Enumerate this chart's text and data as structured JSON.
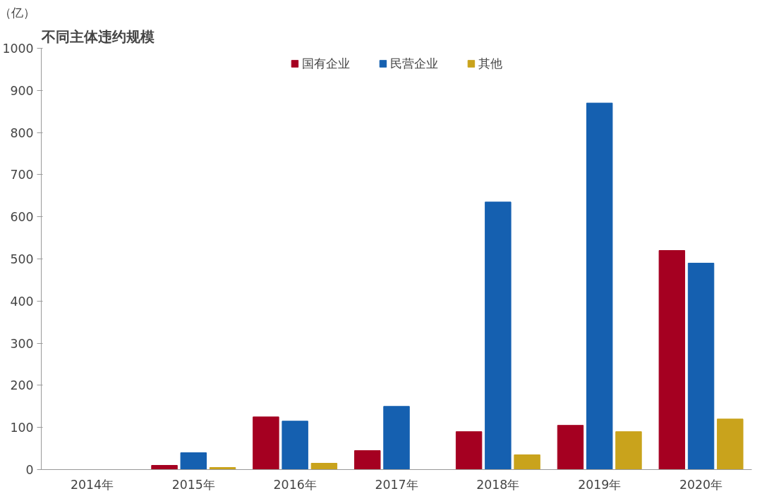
{
  "chart_data": {
    "type": "bar",
    "title": "不同主体违约规模",
    "ylabel": "（亿）",
    "categories": [
      "2014年",
      "2015年",
      "2016年",
      "2017年",
      "2018年",
      "2019年",
      "2020年"
    ],
    "series": [
      {
        "name": "国有企业",
        "color": "#a50021",
        "values": [
          0,
          10,
          125,
          45,
          90,
          105,
          520
        ]
      },
      {
        "name": "民营企业",
        "color": "#1560b0",
        "values": [
          0,
          40,
          115,
          150,
          635,
          870,
          490
        ]
      },
      {
        "name": "其他",
        "color": "#c9a31c",
        "values": [
          0,
          5,
          15,
          0,
          35,
          90,
          120
        ]
      }
    ],
    "ylim": [
      0,
      1000
    ],
    "yticks": [
      0,
      100,
      200,
      300,
      400,
      500,
      600,
      700,
      800,
      900,
      1000
    ],
    "grid": false,
    "legend": "top"
  }
}
